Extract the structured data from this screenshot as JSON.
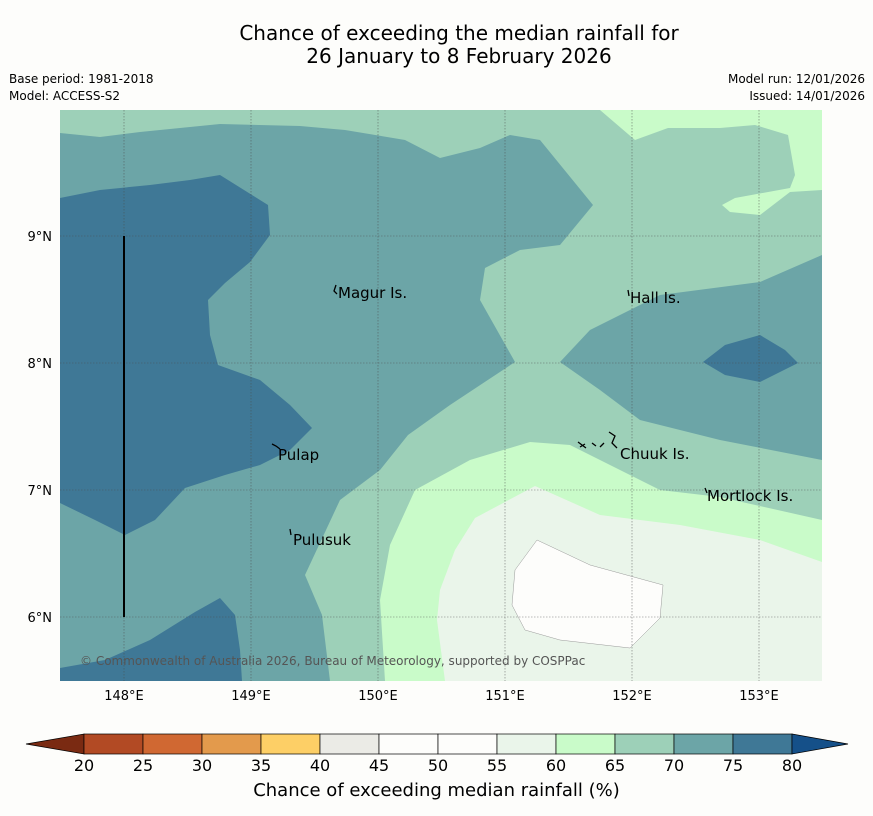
{
  "title": {
    "line1": "Chance of exceeding the median rainfall for",
    "line2": "26 January to 8 February 2026"
  },
  "meta": {
    "base_period": "Base period: 1981-2018",
    "model": "Model: ACCESS-S2",
    "model_run": "Model run: 12/01/2026",
    "issued": "Issued: 14/01/2026"
  },
  "map": {
    "lat_ticks": [
      "9°N",
      "8°N",
      "7°N",
      "6°N"
    ],
    "lon_ticks": [
      "148°E",
      "149°E",
      "150°E",
      "151°E",
      "152°E",
      "153°E"
    ],
    "places": {
      "magur": "Magur Is.",
      "hall": "Hall Is.",
      "pulap": "Pulap",
      "chuuk": "Chuuk Is.",
      "mortlock": "Mortlock Is.",
      "pulusuk": "Pulusuk"
    },
    "copyright": "© Commonwealth of Australia 2026, Bureau of Meteorology, supported by COSPPac"
  },
  "colorbar": {
    "ticks": [
      "20",
      "25",
      "30",
      "35",
      "40",
      "45",
      "50",
      "55",
      "60",
      "65",
      "70",
      "75",
      "80"
    ],
    "label": "Chance of exceeding median rainfall (%)",
    "colors": {
      "below20": "#7a2a12",
      "b20_25": "#b24a24",
      "b25_30": "#d06832",
      "b30_35": "#e39a4c",
      "b35_40": "#fdcf66",
      "b40_45": "#ebebe6",
      "b45_50": "#fdfdfb",
      "b50_55": "#fdfdfb",
      "b55_60": "#eaf5ea",
      "b60_65": "#c9fbc9",
      "b65_70": "#9dd0b8",
      "b70_75": "#6ca5a7",
      "b75_80": "#3f7896",
      "above80": "#155089"
    }
  }
}
